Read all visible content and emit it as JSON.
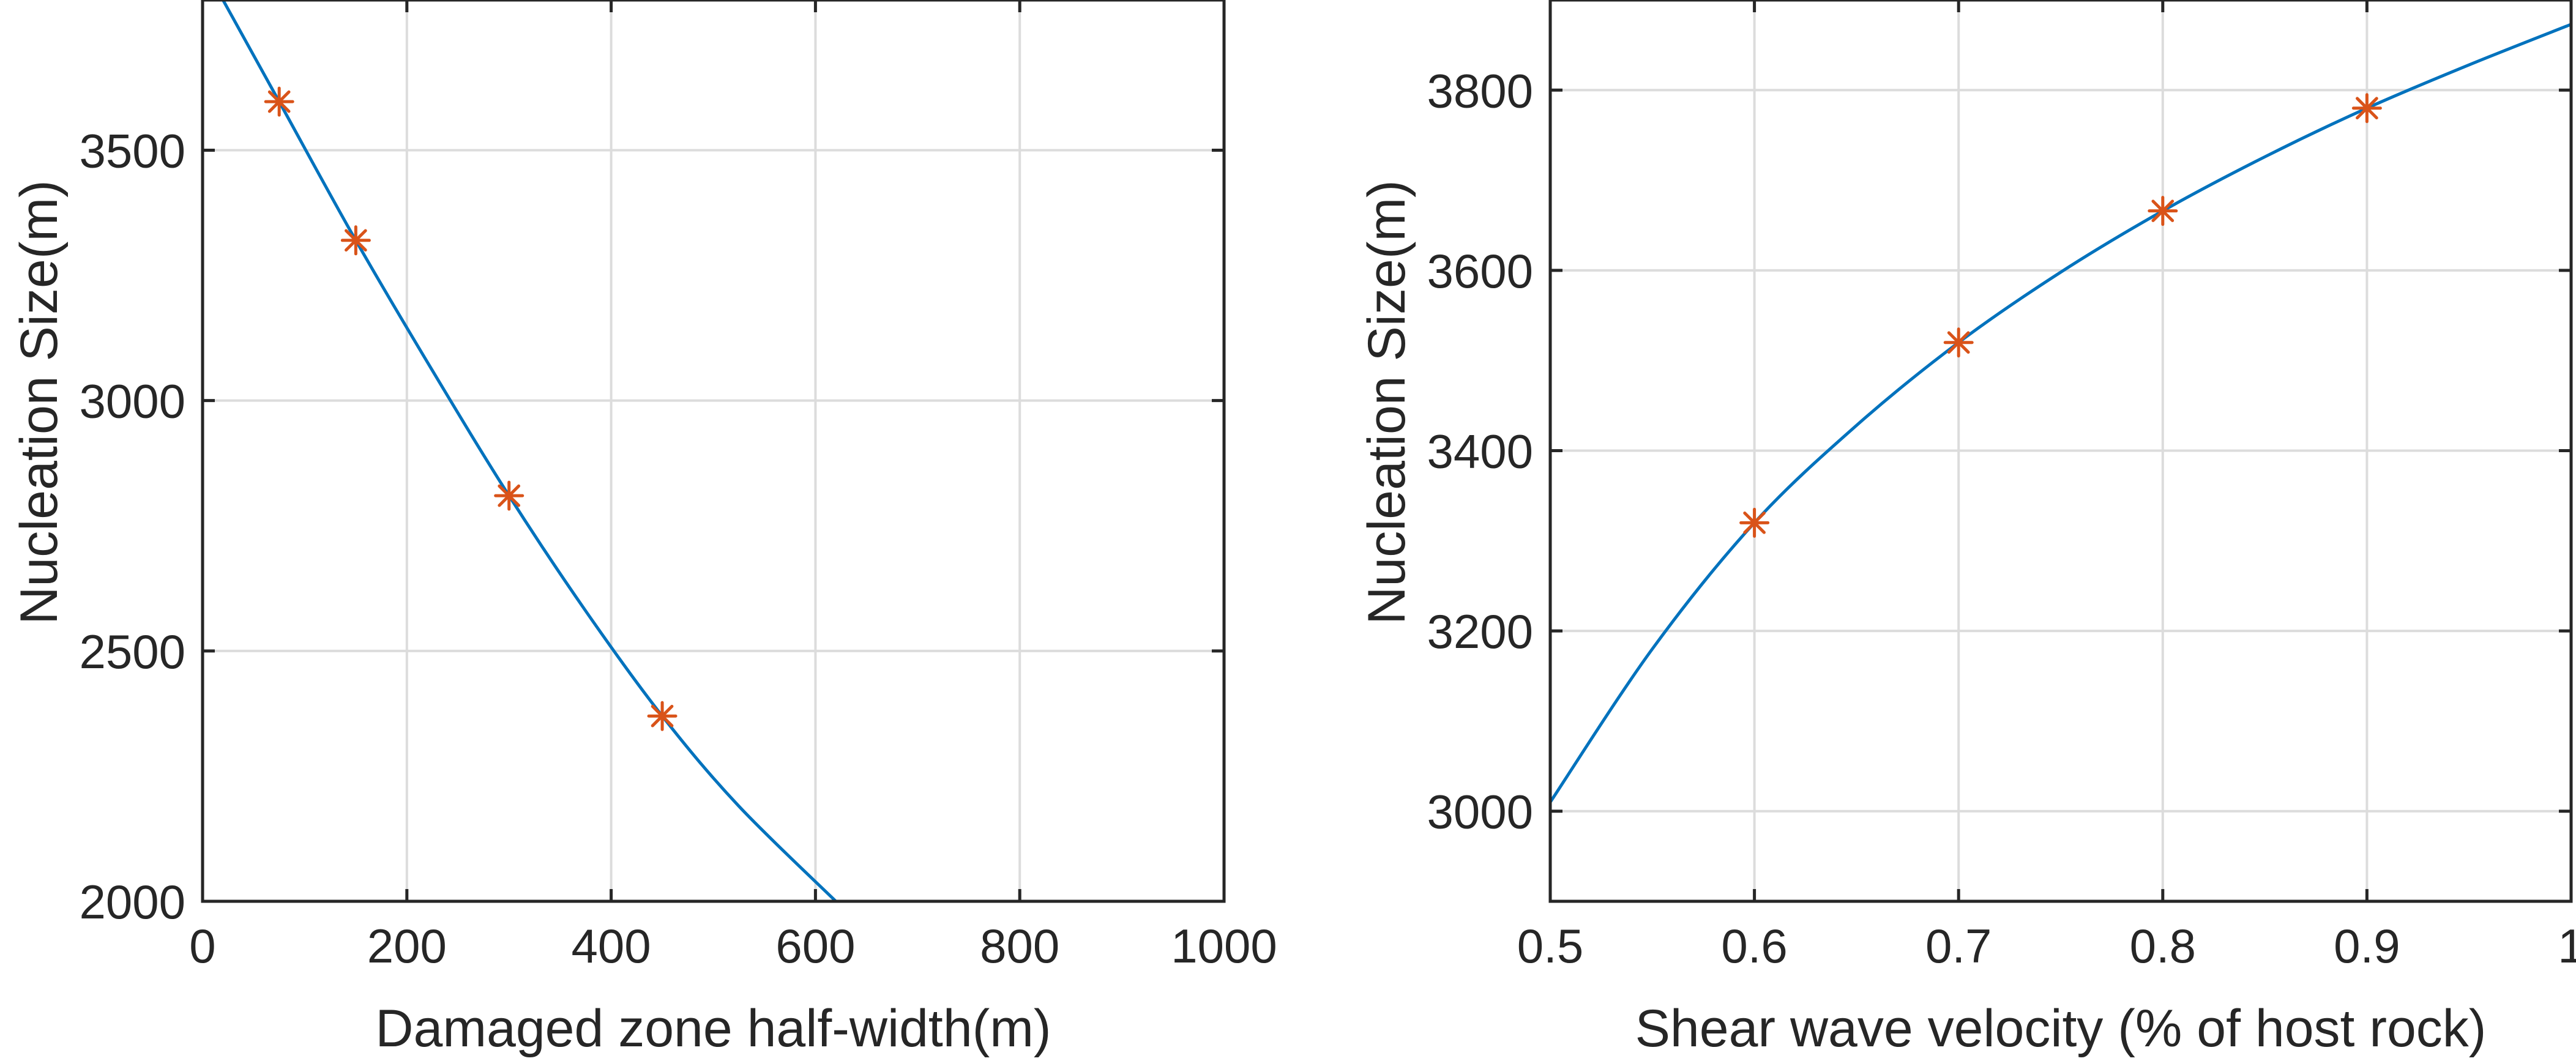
{
  "chart_data": [
    {
      "type": "line",
      "xlabel": "Damaged zone half-width(m)",
      "ylabel": "Nucleation Size(m)",
      "xlim": [
        0,
        1000
      ],
      "ylim": [
        2000,
        3800
      ],
      "xticks": [
        0,
        200,
        400,
        600,
        800,
        1000
      ],
      "xtick_labels": [
        "0",
        "200",
        "400",
        "600",
        "800",
        "1000"
      ],
      "yticks": [
        2000,
        2500,
        3000,
        3500
      ],
      "ytick_labels": [
        "2000",
        "2500",
        "3000",
        "3500"
      ],
      "grid": true,
      "series": [
        {
          "style": "line",
          "color": "#0072BD",
          "x": [
            20,
            75,
            150,
            225,
            300,
            375,
            450,
            525,
            620
          ],
          "y": [
            3800,
            3597,
            3320,
            3060,
            2810,
            2580,
            2370,
            2190,
            2000
          ]
        },
        {
          "style": "markers",
          "marker": "asterisk",
          "color": "#D95319",
          "x": [
            75,
            150,
            300,
            450
          ],
          "y": [
            3597,
            3320,
            2810,
            2370
          ]
        }
      ]
    },
    {
      "type": "line",
      "xlabel": "Shear wave velocity (% of host rock)",
      "ylabel": "Nucleation Size(m)",
      "xlim": [
        0.5,
        1
      ],
      "ylim": [
        2900,
        3900
      ],
      "xticks": [
        0.5,
        0.6,
        0.7,
        0.8,
        0.9,
        1
      ],
      "xtick_labels": [
        "0.5",
        "0.6",
        "0.7",
        "0.8",
        "0.9",
        "1"
      ],
      "yticks": [
        3000,
        3200,
        3400,
        3600,
        3800
      ],
      "ytick_labels": [
        "3000",
        "3200",
        "3400",
        "3600",
        "3800"
      ],
      "grid": true,
      "series": [
        {
          "style": "line",
          "color": "#0072BD",
          "x": [
            0.5,
            0.55,
            0.6,
            0.65,
            0.7,
            0.75,
            0.8,
            0.85,
            0.9,
            0.95,
            1.0
          ],
          "y": [
            3010,
            3180,
            3320,
            3428,
            3520,
            3598,
            3666,
            3726,
            3780,
            3828,
            3873
          ]
        },
        {
          "style": "markers",
          "marker": "asterisk",
          "color": "#D95319",
          "x": [
            0.6,
            0.7,
            0.8,
            0.9
          ],
          "y": [
            3320,
            3520,
            3666,
            3780
          ]
        }
      ]
    }
  ]
}
